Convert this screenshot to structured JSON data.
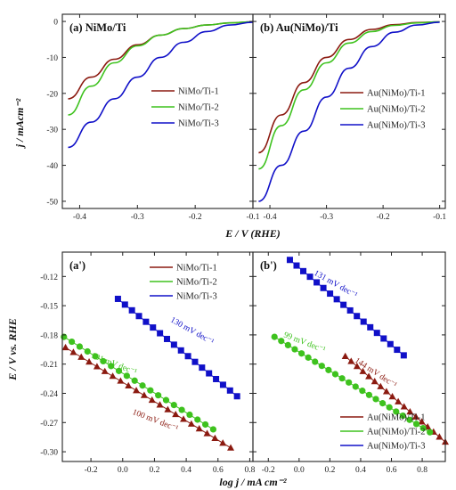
{
  "colors": {
    "s1": "#8b1a10",
    "s2": "#3ec21e",
    "s3": "#1010c8",
    "axis": "#222222"
  },
  "axis_labels": {
    "top_y": "j / mAcm⁻²",
    "top_x": "E / V (RHE)",
    "bottom_y": "E / V vs. RHE",
    "bottom_x": "log j / mA cm⁻²"
  },
  "chart_data": [
    {
      "type": "line",
      "title": "(a) NiMo/Ti",
      "xlim": [
        -0.43,
        -0.1
      ],
      "ylim": [
        -52,
        2
      ],
      "xticks": [
        -0.4,
        -0.3,
        -0.2,
        -0.1
      ],
      "yticks": [
        0,
        -10,
        -20,
        -30,
        -40,
        -50
      ],
      "xtick_labels": [
        "-0.4",
        "-0.3",
        "-0.2",
        "-0.1"
      ],
      "ytick_labels": [
        "0",
        "-10",
        "-20",
        "-30",
        "-40",
        "-50"
      ],
      "legend": "right",
      "series": [
        {
          "name": "NiMo/Ti-1",
          "color_key": "s1",
          "x": [
            -0.42,
            -0.38,
            -0.34,
            -0.3,
            -0.26,
            -0.22,
            -0.18,
            -0.14,
            -0.1
          ],
          "y": [
            -21.5,
            -15.5,
            -10.5,
            -6.5,
            -3.8,
            -2.0,
            -1.0,
            -0.4,
            -0.1
          ]
        },
        {
          "name": "NiMo/Ti-2",
          "color_key": "s2",
          "x": [
            -0.42,
            -0.38,
            -0.34,
            -0.3,
            -0.26,
            -0.22,
            -0.18,
            -0.14,
            -0.1
          ],
          "y": [
            -26.0,
            -18.0,
            -11.5,
            -6.8,
            -3.8,
            -2.0,
            -1.0,
            -0.4,
            -0.1
          ]
        },
        {
          "name": "NiMo/Ti-3",
          "color_key": "s3",
          "x": [
            -0.42,
            -0.38,
            -0.34,
            -0.3,
            -0.26,
            -0.22,
            -0.18,
            -0.14,
            -0.1
          ],
          "y": [
            -35.0,
            -28.0,
            -21.5,
            -15.5,
            -10.0,
            -5.8,
            -2.8,
            -1.0,
            -0.2
          ]
        }
      ]
    },
    {
      "type": "line",
      "title": "(b) Au(NiMo)/Ti",
      "xlim": [
        -0.43,
        -0.09
      ],
      "ylim": [
        -52,
        2
      ],
      "xticks": [
        -0.4,
        -0.3,
        -0.2,
        -0.1
      ],
      "yticks": [
        0,
        -10,
        -20,
        -30,
        -40,
        -50
      ],
      "xtick_labels": [
        "-0.4",
        "-0.3",
        "-0.2",
        "-0.1"
      ],
      "ytick_labels": [],
      "legend": "right",
      "series": [
        {
          "name": "Au(NiMo)/Ti-1",
          "color_key": "s1",
          "x": [
            -0.42,
            -0.38,
            -0.34,
            -0.3,
            -0.26,
            -0.22,
            -0.18,
            -0.14,
            -0.1
          ],
          "y": [
            -36.5,
            -26.0,
            -17.0,
            -10.0,
            -5.0,
            -2.2,
            -0.9,
            -0.3,
            -0.1
          ]
        },
        {
          "name": "Au(NiMo)/Ti-2",
          "color_key": "s2",
          "x": [
            -0.42,
            -0.38,
            -0.34,
            -0.3,
            -0.26,
            -0.22,
            -0.18,
            -0.14,
            -0.1
          ],
          "y": [
            -41.0,
            -29.0,
            -19.0,
            -11.5,
            -6.0,
            -2.8,
            -1.1,
            -0.4,
            -0.1
          ]
        },
        {
          "name": "Au(NiMo)/Ti-3",
          "color_key": "s3",
          "x": [
            -0.42,
            -0.38,
            -0.34,
            -0.3,
            -0.26,
            -0.22,
            -0.18,
            -0.14,
            -0.1
          ],
          "y": [
            -50.0,
            -40.0,
            -30.5,
            -21.0,
            -13.0,
            -7.0,
            -3.0,
            -1.0,
            -0.2
          ]
        }
      ]
    },
    {
      "type": "scatter",
      "title": "(a')",
      "xlim": [
        -0.38,
        0.82
      ],
      "ylim": [
        -0.31,
        -0.095
      ],
      "xticks": [
        -0.2,
        0.0,
        0.2,
        0.4,
        0.6,
        0.8
      ],
      "yticks": [
        -0.12,
        -0.15,
        -0.18,
        -0.21,
        -0.24,
        -0.27,
        -0.3
      ],
      "xtick_labels": [
        "-0.2",
        "0.0",
        "0.2",
        "0.4",
        "0.6",
        "0.8"
      ],
      "ytick_labels": [
        "-0.12",
        "-0.15",
        "-0.18",
        "-0.21",
        "-0.24",
        "-0.27",
        "-0.30"
      ],
      "legend": "top-right",
      "series": [
        {
          "name": "NiMo/Ti-1",
          "color_key": "s1",
          "marker": "triangle",
          "x_range": [
            -0.36,
            0.68
          ],
          "y_range": [
            -0.193,
            -0.296
          ],
          "n": 22
        },
        {
          "name": "NiMo/Ti-2",
          "color_key": "s2",
          "marker": "circle",
          "x_range": [
            -0.37,
            0.57
          ],
          "y_range": [
            -0.182,
            -0.277
          ],
          "n": 20
        },
        {
          "name": "NiMo/Ti-3",
          "color_key": "s3",
          "marker": "square",
          "x_range": [
            -0.03,
            0.72
          ],
          "y_range": [
            -0.143,
            -0.243
          ],
          "n": 18
        }
      ],
      "annotations": [
        {
          "text": "130 mV dec⁻¹",
          "color_key": "s3",
          "x": 0.43,
          "y": -0.178,
          "angle": 29
        },
        {
          "text": "101 mV dec⁻¹",
          "color_key": "s2",
          "x": -0.06,
          "y": -0.212,
          "angle": 21
        },
        {
          "text": "100 mV dec⁻¹",
          "color_key": "s1",
          "x": 0.2,
          "y": -0.27,
          "angle": 21
        }
      ]
    },
    {
      "type": "scatter",
      "title": "(b')",
      "xlim": [
        -0.3,
        0.95
      ],
      "ylim": [
        -0.31,
        -0.095
      ],
      "xticks": [
        -0.2,
        0.0,
        0.2,
        0.4,
        0.6,
        0.8
      ],
      "yticks": [
        -0.12,
        -0.15,
        -0.18,
        -0.21,
        -0.24,
        -0.27,
        -0.3
      ],
      "xtick_labels": [
        "-0.2",
        "0.0",
        "0.2",
        "0.4",
        "0.6",
        "0.8"
      ],
      "ytick_labels": [],
      "legend": "bottom-right",
      "series": [
        {
          "name": "Au(NiMo)/Ti-1",
          "color_key": "s1",
          "marker": "triangle",
          "x_range": [
            0.3,
            0.95
          ],
          "y_range": [
            -0.202,
            -0.29
          ],
          "n": 18
        },
        {
          "name": "Au(NiMo)/Ti-2",
          "color_key": "s2",
          "marker": "circle",
          "x_range": [
            -0.16,
            0.85
          ],
          "y_range": [
            -0.182,
            -0.28
          ],
          "n": 24
        },
        {
          "name": "Au(NiMo)/Ti-3",
          "color_key": "s3",
          "marker": "square",
          "x_range": [
            -0.06,
            0.68
          ],
          "y_range": [
            -0.103,
            -0.201
          ],
          "n": 18
        }
      ],
      "annotations": [
        {
          "text": "131 mV dec⁻¹",
          "color_key": "s3",
          "x": 0.23,
          "y": -0.13,
          "angle": 29
        },
        {
          "text": "99 mV dec⁻¹",
          "color_key": "s2",
          "x": 0.03,
          "y": -0.19,
          "angle": 21
        },
        {
          "text": "144 mV dec⁻¹",
          "color_key": "s1",
          "x": 0.49,
          "y": -0.221,
          "angle": 33
        }
      ]
    }
  ]
}
